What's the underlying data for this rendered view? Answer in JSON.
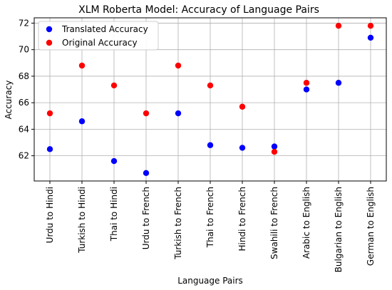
{
  "chart_data": {
    "type": "scatter",
    "title": "XLM Roberta Model: Accuracy of Language Pairs",
    "xlabel": "Language Pairs",
    "ylabel": "Accuracy",
    "categories": [
      "Urdu to Hindi",
      "Turkish to Hindi",
      "Thai to Hindi",
      "Urdu to French",
      "Turkish to French",
      "Thai to French",
      "Hindi to French",
      "Swahili to French",
      "Arabic to English",
      "Bulgarian to English",
      "German to English"
    ],
    "series": [
      {
        "name": "Translated Accuracy",
        "color": "#0000ff",
        "values": [
          62.5,
          64.6,
          61.6,
          60.7,
          65.2,
          62.8,
          62.6,
          62.7,
          67.0,
          67.5,
          70.9
        ]
      },
      {
        "name": "Original Accuracy",
        "color": "#ff0000",
        "values": [
          65.2,
          68.8,
          67.3,
          65.2,
          68.8,
          67.3,
          65.7,
          62.3,
          67.5,
          71.8,
          71.8
        ]
      }
    ],
    "yticks": [
      62,
      64,
      66,
      68,
      70,
      72
    ],
    "ylim": [
      60.1,
      72.4
    ],
    "grid": true,
    "legend_position": "top-left"
  }
}
